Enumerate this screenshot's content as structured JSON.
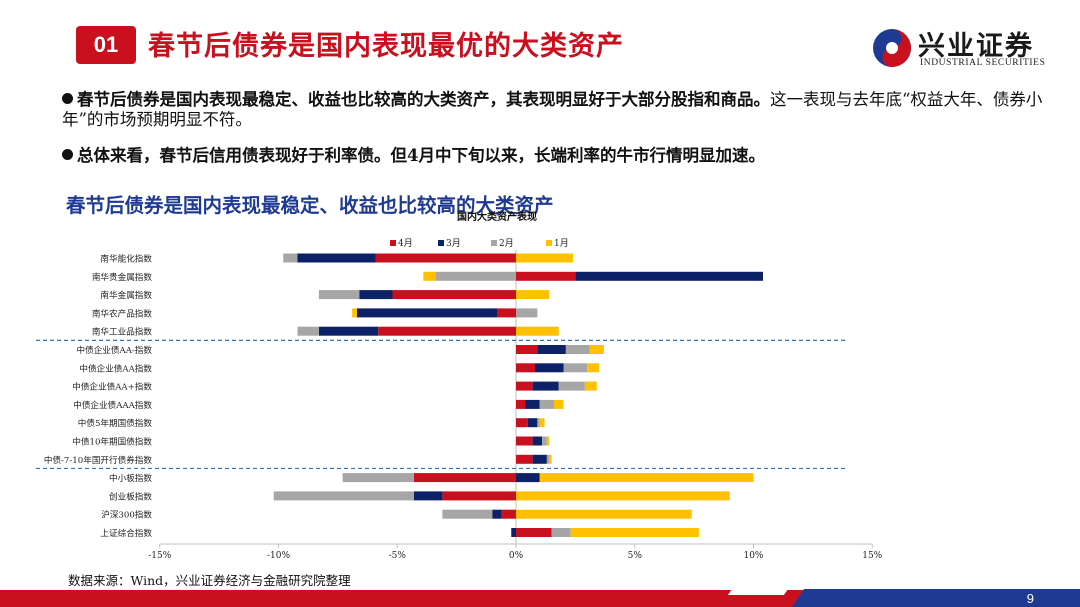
{
  "header": {
    "number": "01",
    "title": "春节后债券是国内表现最优的大类资产",
    "logo_cn": "兴业证券",
    "logo_en": "INDUSTRIAL SECURITIES"
  },
  "bullets": [
    {
      "bold": "春节后债券是国内表现最稳定、收益也比较高的大类资产，其表现明显好于大部分股指和商品。",
      "normal": "这一表现与去年底“权益大年、债券小年”的市场预期明显不符。"
    },
    {
      "bold": "总体来看，春节后信用债表现好于利率债。但4月中下旬以来，长端利率的牛市行情明显加速。",
      "normal": ""
    }
  ],
  "chart_heading": "春节后债券是国内表现最稳定、收益也比较高的大类资产",
  "source": "数据来源：Wind，兴业证券经济与金融研究院整理",
  "page_number": "9",
  "colors": {
    "brand_red": "#c8101e",
    "brand_blue": "#1f3a93",
    "apr": "#c8101e",
    "mar": "#0d2166",
    "feb": "#a6a6a6",
    "jan": "#ffc000",
    "divider": "#2e75b6"
  },
  "chart_data": {
    "type": "bar",
    "orientation": "horizontal",
    "stacked": true,
    "title": "国内大类资产表现",
    "xlim": [
      -15,
      15
    ],
    "xticks": [
      "-15%",
      "-10%",
      "-5%",
      "0%",
      "5%",
      "10%",
      "15%"
    ],
    "legend_position": "top",
    "categories": [
      "南华能化指数",
      "南华贵金属指数",
      "南华金属指数",
      "南华农产品指数",
      "南华工业品指数",
      "中债企业债AA-指数",
      "中债企业债AA指数",
      "中债企业债AA+指数",
      "中债企业债AAA指数",
      "中债5年期国债指数",
      "中债10年期国债指数",
      "中债-7-10年国开行债券指数",
      "中小板指数",
      "创业板指数",
      "沪深300指数",
      "上证综合指数"
    ],
    "series": [
      {
        "name": "4月",
        "values": [
          -5.9,
          2.5,
          -5.2,
          -0.8,
          -5.8,
          0.9,
          0.8,
          0.7,
          0.4,
          0.5,
          0.7,
          0.7,
          -4.3,
          -3.1,
          -0.6,
          1.5
        ]
      },
      {
        "name": "3月",
        "values": [
          -3.3,
          7.9,
          -1.4,
          -5.9,
          -2.5,
          1.2,
          1.2,
          1.1,
          0.6,
          0.4,
          0.4,
          0.6,
          1.0,
          -1.2,
          -0.4,
          -0.2
        ]
      },
      {
        "name": "2月",
        "values": [
          -0.6,
          -3.4,
          -1.7,
          0.9,
          -0.9,
          1.0,
          1.0,
          1.1,
          0.6,
          0.1,
          0.2,
          0.1,
          -3.0,
          -5.9,
          -2.1,
          0.8
        ]
      },
      {
        "name": "1月",
        "values": [
          2.4,
          -0.5,
          1.4,
          -0.2,
          1.8,
          0.6,
          0.5,
          0.5,
          0.4,
          0.2,
          0.1,
          0.1,
          9.0,
          9.0,
          7.4,
          5.4
        ]
      }
    ],
    "annotations": [
      "dashed divider between 南华工业品指数 and 中债企业债AA-指数",
      "dashed divider between 中债-7-10年国开行债券指数 and 中小板指数"
    ]
  }
}
